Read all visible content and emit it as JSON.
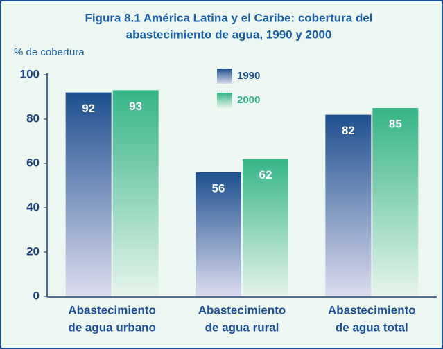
{
  "chart_data": {
    "type": "bar",
    "title": [
      "Figura 8.1  América Latina y el Caribe: cobertura del",
      "abastecimiento de agua, 1990 y 2000"
    ],
    "y_label": "% de cobertura",
    "categories": [
      [
        "Abastecimiento",
        "de agua urbano"
      ],
      [
        "Abastecimiento",
        "de agua rural"
      ],
      [
        "Abastecimiento",
        "de agua total"
      ]
    ],
    "series": [
      {
        "name": "1990",
        "color": "#1d4f8f",
        "values": [
          92,
          56,
          82
        ]
      },
      {
        "name": "2000",
        "color": "#35b587",
        "values": [
          93,
          62,
          85
        ]
      }
    ],
    "ylim": [
      0,
      100
    ],
    "yticks": [
      0,
      20,
      40,
      60,
      80,
      100
    ],
    "grid": false
  }
}
